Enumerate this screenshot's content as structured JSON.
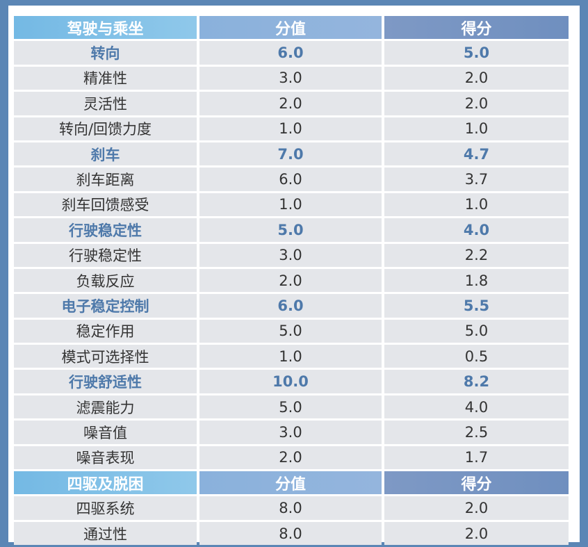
{
  "sections": [
    {
      "header": {
        "name": "驾驶与乘坐",
        "col2": "分值",
        "col3": "得分"
      },
      "rows": [
        {
          "type": "category",
          "label": "转向",
          "value": "6.0",
          "score": "5.0"
        },
        {
          "type": "item",
          "label": "精准性",
          "value": "3.0",
          "score": "2.0"
        },
        {
          "type": "item",
          "label": "灵活性",
          "value": "2.0",
          "score": "2.0"
        },
        {
          "type": "item",
          "label": "转向/回馈力度",
          "value": "1.0",
          "score": "1.0"
        },
        {
          "type": "category",
          "label": "刹车",
          "value": "7.0",
          "score": "4.7"
        },
        {
          "type": "item",
          "label": "刹车距离",
          "value": "6.0",
          "score": "3.7"
        },
        {
          "type": "item",
          "label": "刹车回馈感受",
          "value": "1.0",
          "score": "1.0"
        },
        {
          "type": "category",
          "label": "行驶稳定性",
          "value": "5.0",
          "score": "4.0"
        },
        {
          "type": "item",
          "label": "行驶稳定性",
          "value": "3.0",
          "score": "2.2"
        },
        {
          "type": "item",
          "label": "负载反应",
          "value": "2.0",
          "score": "1.8"
        },
        {
          "type": "category",
          "label": "电子稳定控制",
          "value": "6.0",
          "score": "5.5"
        },
        {
          "type": "item",
          "label": "稳定作用",
          "value": "5.0",
          "score": "5.0"
        },
        {
          "type": "item",
          "label": "模式可选择性",
          "value": "1.0",
          "score": "0.5"
        },
        {
          "type": "category",
          "label": "行驶舒适性",
          "value": "10.0",
          "score": "8.2"
        },
        {
          "type": "item",
          "label": "滤震能力",
          "value": "5.0",
          "score": "4.0"
        },
        {
          "type": "item",
          "label": "噪音值",
          "value": "3.0",
          "score": "2.5"
        },
        {
          "type": "item",
          "label": "噪音表现",
          "value": "2.0",
          "score": "1.7"
        }
      ]
    },
    {
      "header": {
        "name": "四驱及脱困",
        "col2": "分值",
        "col3": "得分"
      },
      "rows": [
        {
          "type": "item",
          "label": "四驱系统",
          "value": "8.0",
          "score": "2.0"
        },
        {
          "type": "item",
          "label": "通过性",
          "value": "8.0",
          "score": "2.0"
        }
      ]
    }
  ],
  "colors": {
    "frame": "#5b86b5",
    "cell_background": "#e4e6ea",
    "category_text": "#4e79aa",
    "item_text": "#333333",
    "header_text": "#ffffff"
  }
}
